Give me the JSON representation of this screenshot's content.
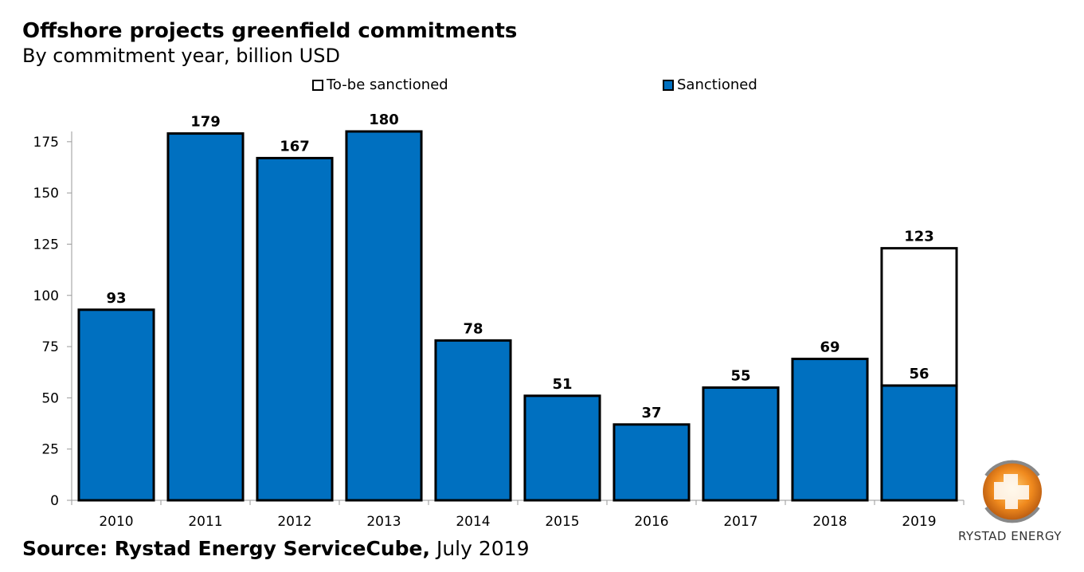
{
  "chart_data": {
    "type": "bar",
    "title": "Offshore projects greenfield commitments",
    "subtitle": "By commitment year, billion USD",
    "categories": [
      "2010",
      "2011",
      "2012",
      "2013",
      "2014",
      "2015",
      "2016",
      "2017",
      "2018",
      "2019"
    ],
    "series": [
      {
        "name": "Sanctioned",
        "color": "#0070C0",
        "values": [
          93,
          179,
          167,
          180,
          78,
          51,
          37,
          55,
          69,
          56
        ]
      },
      {
        "name": "To-be sanctioned",
        "color": "#FFFFFF",
        "values": [
          0,
          0,
          0,
          0,
          0,
          0,
          0,
          0,
          0,
          67
        ]
      }
    ],
    "data_labels": [
      "93",
      "179",
      "167",
      "180",
      "78",
      "51",
      "37",
      "55",
      "69",
      "123"
    ],
    "inner_labels": [
      null,
      null,
      null,
      null,
      null,
      null,
      null,
      null,
      null,
      "56"
    ],
    "yticks": [
      0,
      25,
      50,
      75,
      100,
      125,
      150,
      175
    ],
    "ylim": [
      0,
      180
    ],
    "xlabel": "",
    "ylabel": "",
    "legend": [
      {
        "label": "To-be sanctioned",
        "color": "#FFFFFF"
      },
      {
        "label": "Sanctioned",
        "color": "#0070C0"
      }
    ],
    "legend_position": "top",
    "grid": false
  },
  "source": {
    "bold": "Source: Rystad Energy ServiceCube,",
    "normal": " July 2019"
  },
  "logo": {
    "text": "RYSTAD ENERGY"
  }
}
